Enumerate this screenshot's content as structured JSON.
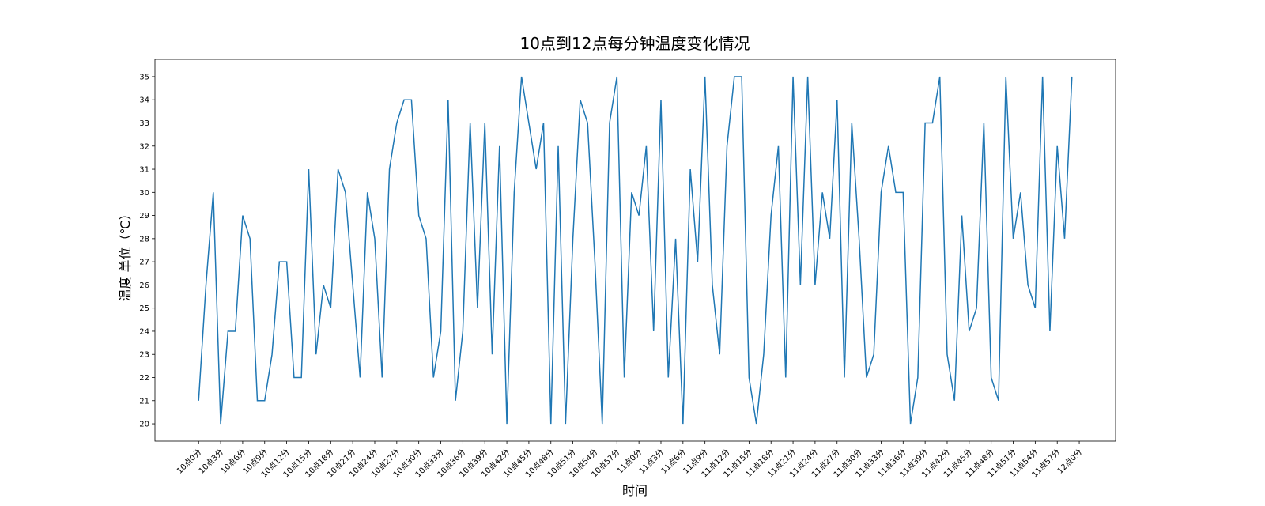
{
  "chart_data": {
    "type": "line",
    "title": "10点到12点每分钟温度变化情况",
    "x_label": "时间",
    "y_label": "温度 单位（℃）",
    "x": [
      0,
      1,
      2,
      3,
      4,
      5,
      6,
      7,
      8,
      9,
      10,
      11,
      12,
      13,
      14,
      15,
      16,
      17,
      18,
      19,
      20,
      21,
      22,
      23,
      24,
      25,
      26,
      27,
      28,
      29,
      30,
      31,
      32,
      33,
      34,
      35,
      36,
      37,
      38,
      39,
      40,
      41,
      42,
      43,
      44,
      45,
      46,
      47,
      48,
      49,
      50,
      51,
      52,
      53,
      54,
      55,
      56,
      57,
      58,
      59,
      60,
      61,
      62,
      63,
      64,
      65,
      66,
      67,
      68,
      69,
      70,
      71,
      72,
      73,
      74,
      75,
      76,
      77,
      78,
      79,
      80,
      81,
      82,
      83,
      84,
      85,
      86,
      87,
      88,
      89,
      90,
      91,
      92,
      93,
      94,
      95,
      96,
      97,
      98,
      99,
      100,
      101,
      102,
      103,
      104,
      105,
      106,
      107,
      108,
      109,
      110,
      111,
      112,
      113,
      114,
      115,
      116,
      117,
      118,
      119
    ],
    "series": [
      {
        "color": "#1f77b4",
        "values": [
          21,
          26,
          30,
          20,
          24,
          24,
          29,
          28,
          21,
          21,
          23,
          27,
          27,
          22,
          22,
          31,
          23,
          26,
          25,
          31,
          30,
          26,
          22,
          30,
          28,
          22,
          31,
          33,
          34,
          34,
          29,
          28,
          22,
          24,
          34,
          21,
          24,
          33,
          25,
          33,
          23,
          32,
          20,
          30,
          35,
          33,
          31,
          33,
          20,
          32,
          20,
          28,
          34,
          33,
          27,
          20,
          33,
          35,
          22,
          30,
          29,
          32,
          24,
          34,
          22,
          28,
          20,
          31,
          27,
          35,
          26,
          23,
          32,
          35,
          35,
          22,
          20,
          23,
          29,
          32,
          22,
          35,
          26,
          35,
          26,
          30,
          28,
          34,
          22,
          33,
          28,
          22,
          23,
          30,
          32,
          30,
          30,
          20,
          22,
          33,
          33,
          35,
          23,
          21,
          29,
          24,
          25,
          33,
          22,
          21,
          35,
          28,
          30,
          26,
          25,
          35,
          24,
          32,
          28,
          35
        ]
      }
    ],
    "xlim": [
      -5.95,
      124.95
    ],
    "ylim": [
      19.25,
      35.75
    ],
    "yticks": [
      20,
      21,
      22,
      23,
      24,
      25,
      26,
      27,
      28,
      29,
      30,
      31,
      32,
      33,
      34,
      35
    ],
    "xticks": [
      {
        "value": 0,
        "label": "10点0分"
      },
      {
        "value": 3,
        "label": "10点3分"
      },
      {
        "value": 6,
        "label": "10点6分"
      },
      {
        "value": 9,
        "label": "10点9分"
      },
      {
        "value": 12,
        "label": "10点12分"
      },
      {
        "value": 15,
        "label": "10点15分"
      },
      {
        "value": 18,
        "label": "10点18分"
      },
      {
        "value": 21,
        "label": "10点21分"
      },
      {
        "value": 24,
        "label": "10点24分"
      },
      {
        "value": 27,
        "label": "10点27分"
      },
      {
        "value": 30,
        "label": "10点30分"
      },
      {
        "value": 33,
        "label": "10点33分"
      },
      {
        "value": 36,
        "label": "10点36分"
      },
      {
        "value": 39,
        "label": "10点39分"
      },
      {
        "value": 42,
        "label": "10点42分"
      },
      {
        "value": 45,
        "label": "10点45分"
      },
      {
        "value": 48,
        "label": "10点48分"
      },
      {
        "value": 51,
        "label": "10点51分"
      },
      {
        "value": 54,
        "label": "10点54分"
      },
      {
        "value": 57,
        "label": "10点57分"
      },
      {
        "value": 60,
        "label": "11点0分"
      },
      {
        "value": 63,
        "label": "11点3分"
      },
      {
        "value": 66,
        "label": "11点6分"
      },
      {
        "value": 69,
        "label": "11点9分"
      },
      {
        "value": 72,
        "label": "11点12分"
      },
      {
        "value": 75,
        "label": "11点15分"
      },
      {
        "value": 78,
        "label": "11点18分"
      },
      {
        "value": 81,
        "label": "11点21分"
      },
      {
        "value": 84,
        "label": "11点24分"
      },
      {
        "value": 87,
        "label": "11点27分"
      },
      {
        "value": 90,
        "label": "11点30分"
      },
      {
        "value": 93,
        "label": "11点33分"
      },
      {
        "value": 96,
        "label": "11点36分"
      },
      {
        "value": 99,
        "label": "11点39分"
      },
      {
        "value": 102,
        "label": "11点42分"
      },
      {
        "value": 105,
        "label": "11点45分"
      },
      {
        "value": 108,
        "label": "11点48分"
      },
      {
        "value": 111,
        "label": "11点51分"
      },
      {
        "value": 114,
        "label": "11点54分"
      },
      {
        "value": 117,
        "label": "11点57分"
      },
      {
        "value": 120,
        "label": "12点0分"
      }
    ],
    "grid": false
  }
}
